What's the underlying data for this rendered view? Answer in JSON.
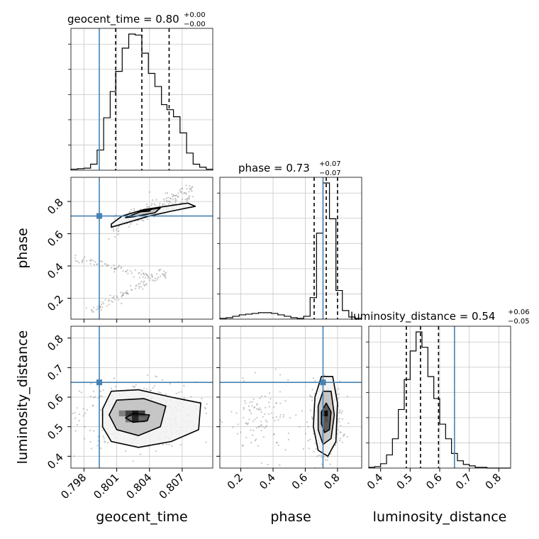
{
  "chart_data": {
    "type": "corner",
    "parameters": [
      "geocent_time",
      "phase",
      "luminosity_distance"
    ],
    "axis_labels": {
      "geocent_time": "geocent_time",
      "phase": "phase",
      "luminosity_distance": "luminosity_distance"
    },
    "titles": {
      "geocent_time": {
        "prefix": "geocent_time = 0.80",
        "plus": "+0.00",
        "minus": "−0.00"
      },
      "phase": {
        "prefix": "phase = 0.73",
        "plus": "+0.07",
        "minus": "−0.07"
      },
      "luminosity_distance": {
        "prefix": "luminosity_distance = 0.54",
        "plus": "+0.06",
        "minus": "−0.05"
      }
    },
    "ranges": {
      "geocent_time": [
        0.7968,
        0.8098
      ],
      "phase": [
        0.07,
        0.95
      ],
      "luminosity_distance": [
        0.36,
        0.84
      ]
    },
    "ticks": {
      "geocent_time": [
        0.798,
        0.801,
        0.804,
        0.807
      ],
      "phase_x": [
        0.2,
        0.4,
        0.6,
        0.8
      ],
      "phase_y": [
        0.2,
        0.4,
        0.6,
        0.8
      ],
      "luminosity_distance_x": [
        0.4,
        0.5,
        0.6,
        0.7,
        0.8
      ],
      "luminosity_distance_y": [
        0.4,
        0.5,
        0.6,
        0.7,
        0.8
      ]
    },
    "tick_labels": {
      "geocent_time": [
        "0.798",
        "0.801",
        "0.804",
        "0.807"
      ],
      "phase_x": [
        "0.2",
        "0.4",
        "0.6",
        "0.8"
      ],
      "phase_y": [
        "0.2",
        "0.4",
        "0.6",
        "0.8"
      ],
      "luminosity_distance_x": [
        "0.4",
        "0.5",
        "0.6",
        "0.7",
        "0.8"
      ],
      "luminosity_distance_y": [
        "0.4",
        "0.5",
        "0.6",
        "0.7",
        "0.8"
      ]
    },
    "truths": {
      "geocent_time": 0.7994,
      "phase": 0.71,
      "luminosity_distance": 0.65
    },
    "quantiles": {
      "geocent_time": [
        0.8009,
        0.8033,
        0.8058
      ],
      "phase": [
        0.655,
        0.73,
        0.8
      ],
      "luminosity_distance": [
        0.487,
        0.535,
        0.596
      ]
    },
    "histograms": {
      "geocent_time": {
        "edges": [
          0.7968,
          0.7974,
          0.798,
          0.7986,
          0.7992,
          0.7998,
          0.8004,
          0.8009,
          0.8015,
          0.8021,
          0.8027,
          0.8033,
          0.8039,
          0.8045,
          0.8051,
          0.8056,
          0.8062,
          0.8068,
          0.8074,
          0.808,
          0.8086,
          0.8092,
          0.8098
        ],
        "counts": [
          1,
          1.5,
          2,
          6,
          20,
          52,
          78,
          98,
          121,
          135,
          134,
          116,
          96,
          83,
          65,
          60,
          53,
          37,
          17,
          6,
          3,
          1
        ]
      },
      "phase": {
        "edges": [
          0.07,
          0.11,
          0.15,
          0.19,
          0.23,
          0.27,
          0.31,
          0.35,
          0.39,
          0.43,
          0.47,
          0.51,
          0.55,
          0.59,
          0.63,
          0.67,
          0.71,
          0.75,
          0.79,
          0.83,
          0.87,
          0.91,
          0.95
        ],
        "counts": [
          1,
          2,
          4,
          6,
          7,
          8,
          9,
          9,
          8,
          6,
          4,
          2,
          1,
          4,
          30,
          120,
          190,
          140,
          40,
          12,
          3,
          1
        ]
      },
      "luminosity_distance": {
        "edges": [
          0.36,
          0.38,
          0.4,
          0.42,
          0.44,
          0.46,
          0.48,
          0.5,
          0.52,
          0.54,
          0.56,
          0.58,
          0.6,
          0.62,
          0.64,
          0.66,
          0.68,
          0.7,
          0.72,
          0.74,
          0.76,
          0.78,
          0.8,
          0.82,
          0.84
        ],
        "counts": [
          1,
          2,
          6,
          18,
          40,
          80,
          121,
          160,
          186,
          165,
          125,
          95,
          60,
          40,
          20,
          10,
          5,
          3,
          1,
          1,
          0,
          0,
          0,
          0
        ]
      }
    },
    "scatter_clusters": {
      "phase_vs_geocent_time": [
        {
          "x": [
            0.8005,
            0.808
          ],
          "y": [
            0.64,
            0.86
          ],
          "spread": 0.03,
          "n": 180
        },
        {
          "x": [
            0.797,
            0.8045
          ],
          "y": [
            0.45,
            0.33
          ],
          "spread": 0.012,
          "n": 70
        },
        {
          "x": [
            0.7985,
            0.8055
          ],
          "y": [
            0.12,
            0.36
          ],
          "spread": 0.015,
          "n": 90
        }
      ],
      "luminosity_distance_vs_geocent_time": [
        {
          "cx": 0.803,
          "cy": 0.54,
          "sx": 0.0026,
          "sy": 0.055,
          "n": 450
        }
      ],
      "luminosity_distance_vs_phase": [
        {
          "cx": 0.73,
          "cy": 0.53,
          "sx": 0.05,
          "sy": 0.06,
          "n": 320
        },
        {
          "cx": 0.33,
          "cy": 0.52,
          "sx": 0.1,
          "sy": 0.06,
          "n": 110
        }
      ]
    },
    "contours": {
      "phase_vs_geocent_time": [
        [
          [
            0.8005,
            0.66
          ],
          [
            0.8015,
            0.71
          ],
          [
            0.8035,
            0.75
          ],
          [
            0.8055,
            0.77
          ],
          [
            0.8075,
            0.79
          ],
          [
            0.8082,
            0.77
          ],
          [
            0.806,
            0.74
          ],
          [
            0.804,
            0.71
          ],
          [
            0.802,
            0.67
          ],
          [
            0.8005,
            0.64
          ]
        ],
        [
          [
            0.8018,
            0.7
          ],
          [
            0.8035,
            0.745
          ],
          [
            0.805,
            0.76
          ],
          [
            0.8045,
            0.73
          ],
          [
            0.8025,
            0.705
          ]
        ],
        [
          [
            0.803,
            0.735
          ],
          [
            0.8042,
            0.755
          ],
          [
            0.804,
            0.74
          ]
        ]
      ],
      "luminosity_distance_vs_geocent_time": [
        [
          [
            0.7997,
            0.56
          ],
          [
            0.8005,
            0.62
          ],
          [
            0.803,
            0.625
          ],
          [
            0.806,
            0.6
          ],
          [
            0.8087,
            0.58
          ],
          [
            0.8085,
            0.49
          ],
          [
            0.806,
            0.45
          ],
          [
            0.803,
            0.43
          ],
          [
            0.8005,
            0.45
          ],
          [
            0.7997,
            0.5
          ]
        ],
        [
          [
            0.8003,
            0.54
          ],
          [
            0.801,
            0.59
          ],
          [
            0.8035,
            0.595
          ],
          [
            0.8055,
            0.57
          ],
          [
            0.805,
            0.5
          ],
          [
            0.803,
            0.47
          ],
          [
            0.801,
            0.49
          ]
        ],
        [
          [
            0.8018,
            0.53
          ],
          [
            0.8025,
            0.545
          ],
          [
            0.804,
            0.54
          ],
          [
            0.8038,
            0.52
          ],
          [
            0.8025,
            0.515
          ]
        ]
      ],
      "luminosity_distance_vs_phase": [
        [
          [
            0.66,
            0.6
          ],
          [
            0.7,
            0.67
          ],
          [
            0.77,
            0.67
          ],
          [
            0.8,
            0.58
          ],
          [
            0.79,
            0.45
          ],
          [
            0.74,
            0.4
          ],
          [
            0.68,
            0.42
          ],
          [
            0.65,
            0.5
          ]
        ],
        [
          [
            0.68,
            0.57
          ],
          [
            0.71,
            0.62
          ],
          [
            0.76,
            0.62
          ],
          [
            0.78,
            0.54
          ],
          [
            0.76,
            0.46
          ],
          [
            0.71,
            0.44
          ],
          [
            0.68,
            0.49
          ]
        ],
        [
          [
            0.7,
            0.55
          ],
          [
            0.73,
            0.58
          ],
          [
            0.76,
            0.55
          ],
          [
            0.75,
            0.49
          ],
          [
            0.72,
            0.48
          ],
          [
            0.7,
            0.51
          ]
        ]
      ]
    },
    "density_cells": {
      "luminosity_distance_vs_geocent_time": [
        {
          "x": 0.8015,
          "y": 0.545,
          "w": 0.0006,
          "h": 0.02,
          "level": 0.5
        },
        {
          "x": 0.8021,
          "y": 0.545,
          "w": 0.0006,
          "h": 0.02,
          "level": 0.75
        },
        {
          "x": 0.8027,
          "y": 0.545,
          "w": 0.0006,
          "h": 0.02,
          "level": 0.9
        },
        {
          "x": 0.8033,
          "y": 0.545,
          "w": 0.0006,
          "h": 0.02,
          "level": 0.75
        },
        {
          "x": 0.8021,
          "y": 0.525,
          "w": 0.0006,
          "h": 0.02,
          "level": 0.55
        },
        {
          "x": 0.8027,
          "y": 0.525,
          "w": 0.0006,
          "h": 0.02,
          "level": 0.85
        },
        {
          "x": 0.8033,
          "y": 0.525,
          "w": 0.0006,
          "h": 0.02,
          "level": 0.6
        }
      ],
      "luminosity_distance_vs_phase": [
        {
          "x": 0.71,
          "y": 0.545,
          "w": 0.02,
          "h": 0.02,
          "level": 0.8
        },
        {
          "x": 0.73,
          "y": 0.545,
          "w": 0.02,
          "h": 0.02,
          "level": 0.95
        },
        {
          "x": 0.71,
          "y": 0.525,
          "w": 0.02,
          "h": 0.02,
          "level": 0.6
        },
        {
          "x": 0.73,
          "y": 0.525,
          "w": 0.02,
          "h": 0.02,
          "level": 0.7
        }
      ]
    },
    "grid": true,
    "colors": {
      "truth": "#4682b4",
      "hist": "#000000",
      "grid": "#c8c8c8",
      "scatter": "#808080"
    }
  }
}
